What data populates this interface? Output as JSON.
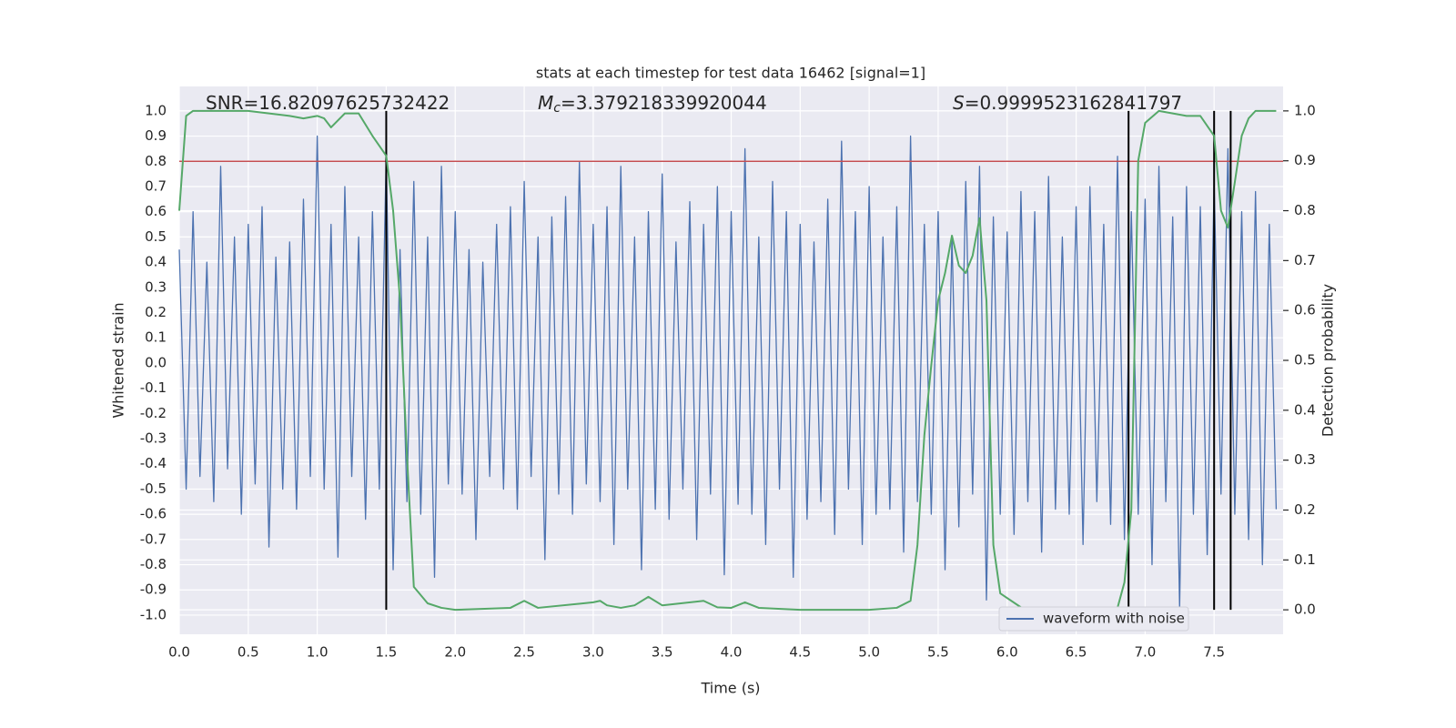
{
  "chart_data": {
    "type": "line",
    "title": "stats at each timestep for test data 16462 [signal=1]",
    "xlabel": "Time (s)",
    "ylabel": "Whitened strain",
    "y2label": "Detection probability",
    "annotations": [
      {
        "text": "SNR=16.82097625732422"
      },
      {
        "symbol": "M",
        "subscript": "c",
        "text": "=3.379218339920044"
      },
      {
        "symbol": "S",
        "text": "=0.9999523162841797"
      }
    ],
    "xlim": [
      0,
      8
    ],
    "ylim": [
      -1.076,
      1.097
    ],
    "y2lim": [
      -0.049,
      1.049
    ],
    "xticks": [
      {
        "value": 0,
        "label": "0.0"
      },
      {
        "value": 0.5,
        "label": "0.5"
      },
      {
        "value": 1,
        "label": "1.0"
      },
      {
        "value": 1.5,
        "label": "1.5"
      },
      {
        "value": 2,
        "label": "2.0"
      },
      {
        "value": 2.5,
        "label": "2.5"
      },
      {
        "value": 3,
        "label": "3.0"
      },
      {
        "value": 3.5,
        "label": "3.5"
      },
      {
        "value": 4,
        "label": "4.0"
      },
      {
        "value": 4.5,
        "label": "4.5"
      },
      {
        "value": 5,
        "label": "5.0"
      },
      {
        "value": 5.5,
        "label": "5.5"
      },
      {
        "value": 6,
        "label": "6.0"
      },
      {
        "value": 6.5,
        "label": "6.5"
      },
      {
        "value": 7,
        "label": "7.0"
      },
      {
        "value": 7.5,
        "label": "7.5"
      }
    ],
    "yticks": [
      {
        "value": -1,
        "label": "-1.0"
      },
      -0.9,
      -0.8,
      -0.7,
      -0.6,
      -0.5,
      -0.4,
      -0.3,
      -0.2,
      -0.1,
      {
        "value": 0,
        "label": "0.0"
      },
      0.1,
      0.2,
      0.3,
      0.4,
      0.5,
      0.6,
      0.7,
      0.8,
      0.9,
      {
        "value": 1,
        "label": "1.0"
      }
    ],
    "y2ticks": [
      {
        "value": 0,
        "label": "0.0"
      },
      0.1,
      0.2,
      0.3,
      0.4,
      0.5,
      0.6,
      0.7,
      0.8,
      0.9,
      {
        "value": 1,
        "label": "1.0"
      }
    ],
    "grid": true,
    "legend": "lower right",
    "threshold": 0.8,
    "threshold_color": "#c44e52",
    "vlines": [
      1.5,
      6.88,
      7.5,
      7.62
    ],
    "vline_color": "#000000",
    "series": [
      {
        "name": "waveform with noise",
        "color": "#4c72b0",
        "axis": "y",
        "x": [
          0,
          0.05,
          0.1,
          0.15,
          0.2,
          0.25,
          0.3,
          0.35,
          0.4,
          0.45,
          0.5,
          0.55,
          0.6,
          0.65,
          0.7,
          0.75,
          0.8,
          0.85,
          0.9,
          0.95,
          1,
          1.05,
          1.1,
          1.15,
          1.2,
          1.25,
          1.3,
          1.35,
          1.4,
          1.45,
          1.5,
          1.55,
          1.6,
          1.65,
          1.7,
          1.75,
          1.8,
          1.85,
          1.9,
          1.95,
          2,
          2.05,
          2.1,
          2.15,
          2.2,
          2.25,
          2.3,
          2.35,
          2.4,
          2.45,
          2.5,
          2.55,
          2.6,
          2.65,
          2.7,
          2.75,
          2.8,
          2.85,
          2.9,
          2.95,
          3,
          3.05,
          3.1,
          3.15,
          3.2,
          3.25,
          3.3,
          3.35,
          3.4,
          3.45,
          3.5,
          3.55,
          3.6,
          3.65,
          3.7,
          3.75,
          3.8,
          3.85,
          3.9,
          3.95,
          4,
          4.05,
          4.1,
          4.15,
          4.2,
          4.25,
          4.3,
          4.35,
          4.4,
          4.45,
          4.5,
          4.55,
          4.6,
          4.65,
          4.7,
          4.75,
          4.8,
          4.85,
          4.9,
          4.95,
          5,
          5.05,
          5.1,
          5.15,
          5.2,
          5.25,
          5.3,
          5.35,
          5.4,
          5.45,
          5.5,
          5.55,
          5.6,
          5.65,
          5.7,
          5.75,
          5.8,
          5.85,
          5.9,
          5.95,
          6,
          6.05,
          6.1,
          6.15,
          6.2,
          6.25,
          6.3,
          6.35,
          6.4,
          6.45,
          6.5,
          6.55,
          6.6,
          6.65,
          6.7,
          6.75,
          6.8,
          6.85,
          6.9,
          6.95,
          7,
          7.05,
          7.1,
          7.15,
          7.2,
          7.25,
          7.3,
          7.35,
          7.4,
          7.45,
          7.5,
          7.55,
          7.6,
          7.65,
          7.7,
          7.75,
          7.8,
          7.85,
          7.9,
          7.95
        ],
        "values": [
          0.45,
          -0.5,
          0.6,
          -0.45,
          0.4,
          -0.55,
          0.78,
          -0.42,
          0.5,
          -0.6,
          0.55,
          -0.48,
          0.62,
          -0.73,
          0.42,
          -0.5,
          0.48,
          -0.58,
          0.65,
          -0.45,
          0.9,
          -0.5,
          0.55,
          -0.77,
          0.7,
          -0.45,
          0.5,
          -0.62,
          0.6,
          -0.5,
          0.83,
          -0.82,
          0.45,
          -0.55,
          0.72,
          -0.6,
          0.5,
          -0.85,
          0.78,
          -0.48,
          0.6,
          -0.52,
          0.45,
          -0.7,
          0.4,
          -0.45,
          0.55,
          -0.5,
          0.62,
          -0.58,
          0.72,
          -0.45,
          0.5,
          -0.78,
          0.58,
          -0.52,
          0.66,
          -0.6,
          0.8,
          -0.48,
          0.55,
          -0.55,
          0.62,
          -0.72,
          0.78,
          -0.5,
          0.5,
          -0.82,
          0.6,
          -0.58,
          0.75,
          -0.62,
          0.48,
          -0.5,
          0.64,
          -0.7,
          0.55,
          -0.52,
          0.7,
          -0.84,
          0.6,
          -0.56,
          0.85,
          -0.6,
          0.5,
          -0.72,
          0.72,
          -0.5,
          0.6,
          -0.85,
          0.55,
          -0.62,
          0.48,
          -0.55,
          0.65,
          -0.68,
          0.88,
          -0.5,
          0.6,
          -0.72,
          0.7,
          -0.6,
          0.5,
          -0.58,
          0.62,
          -0.75,
          0.9,
          -0.55,
          0.55,
          -0.6,
          0.6,
          -0.82,
          0.5,
          -0.65,
          0.72,
          -0.52,
          0.78,
          -0.94,
          0.58,
          -0.6,
          0.52,
          -0.68,
          0.68,
          -0.55,
          0.6,
          -0.75,
          0.74,
          -0.58,
          0.5,
          -0.6,
          0.62,
          -0.72,
          0.7,
          -0.55,
          0.55,
          -0.64,
          0.82,
          -0.7,
          0.6,
          -0.6,
          0.65,
          -0.8,
          0.78,
          -0.55,
          0.58,
          -0.97,
          0.7,
          -0.6,
          0.62,
          -0.76,
          0.72,
          -0.52,
          0.85,
          -0.6,
          0.6,
          -0.7,
          0.68,
          -0.8,
          0.55,
          -0.58
        ]
      },
      {
        "color": "#55a868",
        "axis": "y2",
        "x": [
          0,
          0.05,
          0.1,
          0.5,
          0.8,
          0.9,
          1,
          1.05,
          1.1,
          1.2,
          1.3,
          1.4,
          1.5,
          1.55,
          1.6,
          1.65,
          1.7,
          1.8,
          1.9,
          2,
          2.4,
          2.5,
          2.6,
          3,
          3.05,
          3.1,
          3.2,
          3.3,
          3.4,
          3.5,
          3.8,
          3.9,
          4,
          4.1,
          4.2,
          4.5,
          5,
          5.2,
          5.3,
          5.35,
          5.4,
          5.45,
          5.5,
          5.55,
          5.6,
          5.65,
          5.7,
          5.75,
          5.8,
          5.85,
          5.9,
          5.95,
          6.1,
          6.3,
          6.8,
          6.85,
          6.9,
          6.95,
          7,
          7.1,
          7.3,
          7.4,
          7.5,
          7.55,
          7.6,
          7.65,
          7.7,
          7.75,
          7.8,
          7.95
        ],
        "values": [
          0.8,
          0.99,
          1,
          1,
          0.99,
          0.985,
          0.99,
          0.985,
          0.967,
          0.995,
          0.995,
          0.95,
          0.91,
          0.8,
          0.62,
          0.31,
          0.046,
          0.013,
          0.004,
          0,
          0.004,
          0.018,
          0.004,
          0.015,
          0.018,
          0.009,
          0.004,
          0.009,
          0.026,
          0.009,
          0.018,
          0.005,
          0.004,
          0.015,
          0.004,
          0,
          0,
          0.004,
          0.018,
          0.13,
          0.35,
          0.49,
          0.62,
          0.675,
          0.75,
          0.69,
          0.675,
          0.71,
          0.785,
          0.62,
          0.13,
          0.033,
          0.005,
          0.004,
          0.004,
          0.055,
          0.2,
          0.9,
          0.976,
          1,
          0.99,
          0.99,
          0.95,
          0.8,
          0.766,
          0.857,
          0.95,
          0.985,
          1,
          1
        ]
      }
    ]
  }
}
